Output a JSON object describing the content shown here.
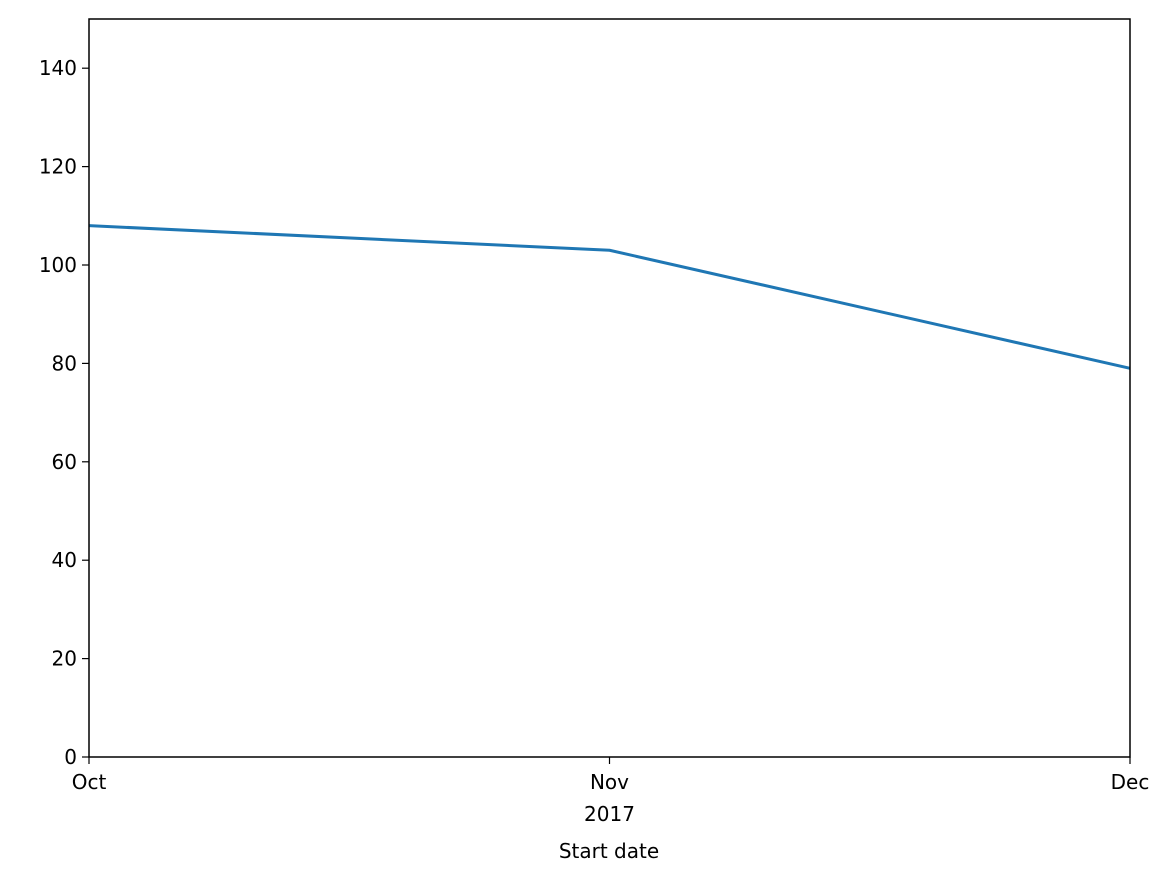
{
  "chart_data": {
    "type": "line",
    "xlabel": "Start date",
    "categories": [
      "Oct",
      "Nov",
      "Dec"
    ],
    "x_year_label": "2017",
    "values": [
      108,
      103,
      79
    ],
    "color": "#1f77b4",
    "ylim": [
      0,
      150
    ],
    "yticks": [
      0,
      20,
      40,
      60,
      80,
      100,
      120,
      140
    ],
    "grid": false
  }
}
